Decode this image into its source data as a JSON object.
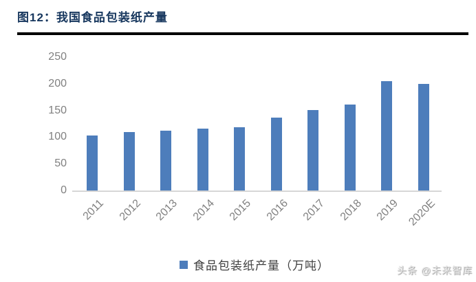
{
  "header": {
    "title": "图12：我国食品包装纸产量"
  },
  "chart_data": {
    "type": "bar",
    "title": "我国食品包装纸产量",
    "categories": [
      "2011",
      "2012",
      "2013",
      "2014",
      "2015",
      "2016",
      "2017",
      "2018",
      "2019",
      "2020E"
    ],
    "values": [
      103,
      109,
      112,
      116,
      119,
      136,
      151,
      161,
      205,
      200
    ],
    "legend": [
      "食品包装纸产量（万吨）"
    ],
    "xlabel": "",
    "ylabel": "",
    "ylim": [
      0,
      250
    ],
    "yticks": [
      0,
      50,
      100,
      150,
      200,
      250
    ],
    "grid": false,
    "legend_position": "bottom",
    "bar_color": "#4d7dbb"
  },
  "colors": {
    "title_text": "#17375e",
    "axis_text": "#808080",
    "axis_line": "#d6d6d6",
    "title_rule": "#000000",
    "bar": "#4d7dbb"
  },
  "footer": {
    "watermark": "头条 @未来智库"
  }
}
